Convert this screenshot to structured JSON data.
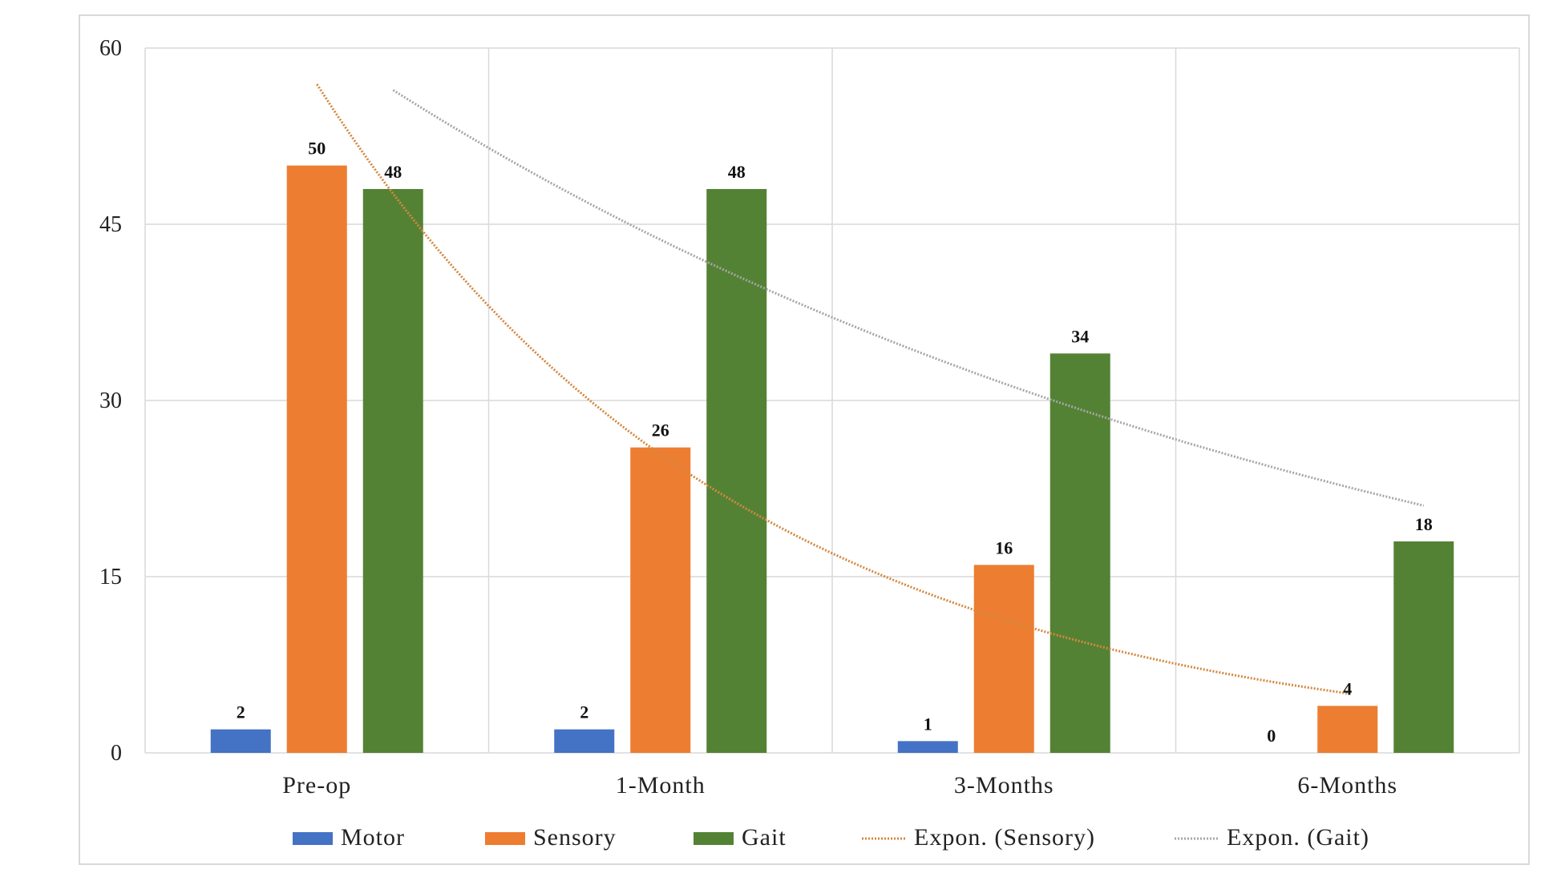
{
  "chart_data": {
    "type": "bar",
    "categories": [
      "Pre-op",
      "1-Month",
      "3-Months",
      "6-Months"
    ],
    "series": [
      {
        "name": "Motor",
        "values": [
          2,
          2,
          1,
          0
        ],
        "color": "#4472c4"
      },
      {
        "name": "Sensory",
        "values": [
          50,
          26,
          16,
          4
        ],
        "color": "#ed7d31"
      },
      {
        "name": "Gait",
        "values": [
          48,
          48,
          34,
          18
        ],
        "color": "#548235"
      }
    ],
    "trendlines": [
      {
        "name": "Expon. (Sensory)",
        "series": "Sensory",
        "type": "exponential",
        "color": "#d4883f",
        "dotted": true
      },
      {
        "name": "Expon. (Gait)",
        "series": "Gait",
        "type": "exponential",
        "color": "#a6a6a6",
        "dotted": true
      }
    ],
    "ylim": [
      0,
      60
    ],
    "yticks": [
      0,
      15,
      30,
      45,
      60
    ],
    "grid": true,
    "legend": "bottom",
    "data_labels": true
  }
}
